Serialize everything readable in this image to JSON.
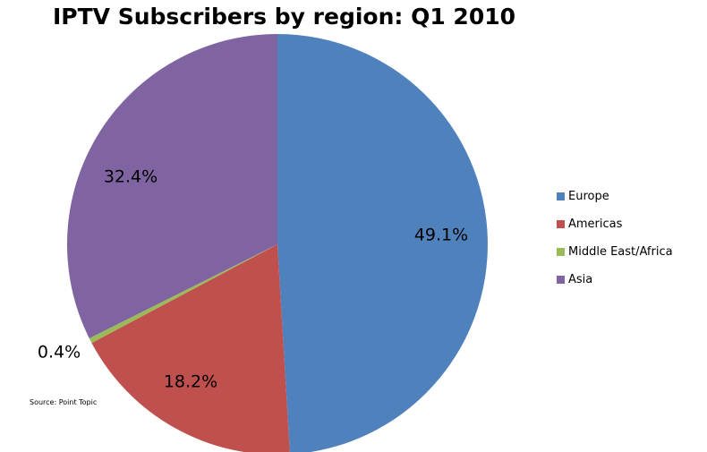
{
  "chart_data": {
    "type": "pie",
    "title": "IPTV Subscribers by region: Q1 2010",
    "source_note": "Source: Point Topic",
    "legend_position": "right",
    "start_angle_deg": 0,
    "direction": "clockwise",
    "slices": [
      {
        "name": "Europe",
        "value": 49.1,
        "label": "49.1%",
        "color": "#4f81bd"
      },
      {
        "name": "Americas",
        "value": 18.2,
        "label": "18.2%",
        "color": "#c0504d"
      },
      {
        "name": "Middle East/Africa",
        "value": 0.4,
        "label": "0.4%",
        "color": "#9bbb59"
      },
      {
        "name": "Asia",
        "value": 32.4,
        "label": "32.4%",
        "color": "#8064a2"
      }
    ]
  }
}
